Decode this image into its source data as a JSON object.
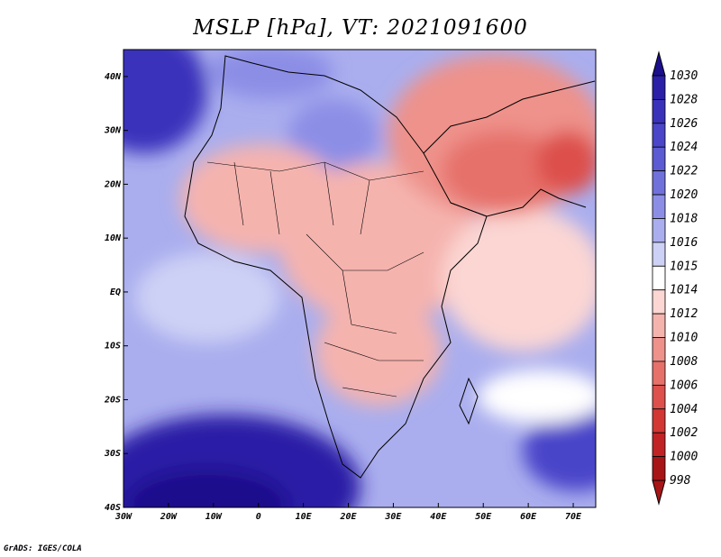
{
  "title": "MSLP [hPa], VT: 2021091600",
  "credit": "GrADS: IGES/COLA",
  "x_axis": {
    "ticks": [
      "30W",
      "20W",
      "10W",
      "0",
      "10E",
      "20E",
      "30E",
      "40E",
      "50E",
      "60E",
      "70E"
    ],
    "lons": [
      -30,
      -20,
      -10,
      0,
      10,
      20,
      30,
      40,
      50,
      60,
      70
    ],
    "range": [
      -30,
      75
    ]
  },
  "y_axis": {
    "ticks": [
      "40N",
      "30N",
      "20N",
      "10N",
      "EQ",
      "10S",
      "20S",
      "30S",
      "40S"
    ],
    "lats": [
      40,
      30,
      20,
      10,
      0,
      -10,
      -20,
      -30,
      -40
    ],
    "range": [
      -40,
      45
    ]
  },
  "colorbar": {
    "labels": [
      "1030",
      "1028",
      "1026",
      "1024",
      "1022",
      "1020",
      "1018",
      "1016",
      "1015",
      "1014",
      "1012",
      "1010",
      "1008",
      "1006",
      "1004",
      "1002",
      "1000",
      "998"
    ],
    "colors": [
      "#1b0f8c",
      "#2a1fa6",
      "#3a31bb",
      "#4a45c9",
      "#5c5bd3",
      "#7171dc",
      "#8c8ee6",
      "#aaaeee",
      "#cdd1f5",
      "#ffffff",
      "#fbd6d3",
      "#f5b3ae",
      "#ee928b",
      "#e6716a",
      "#dd504b",
      "#d23734",
      "#c12324",
      "#a81516"
    ]
  }
}
